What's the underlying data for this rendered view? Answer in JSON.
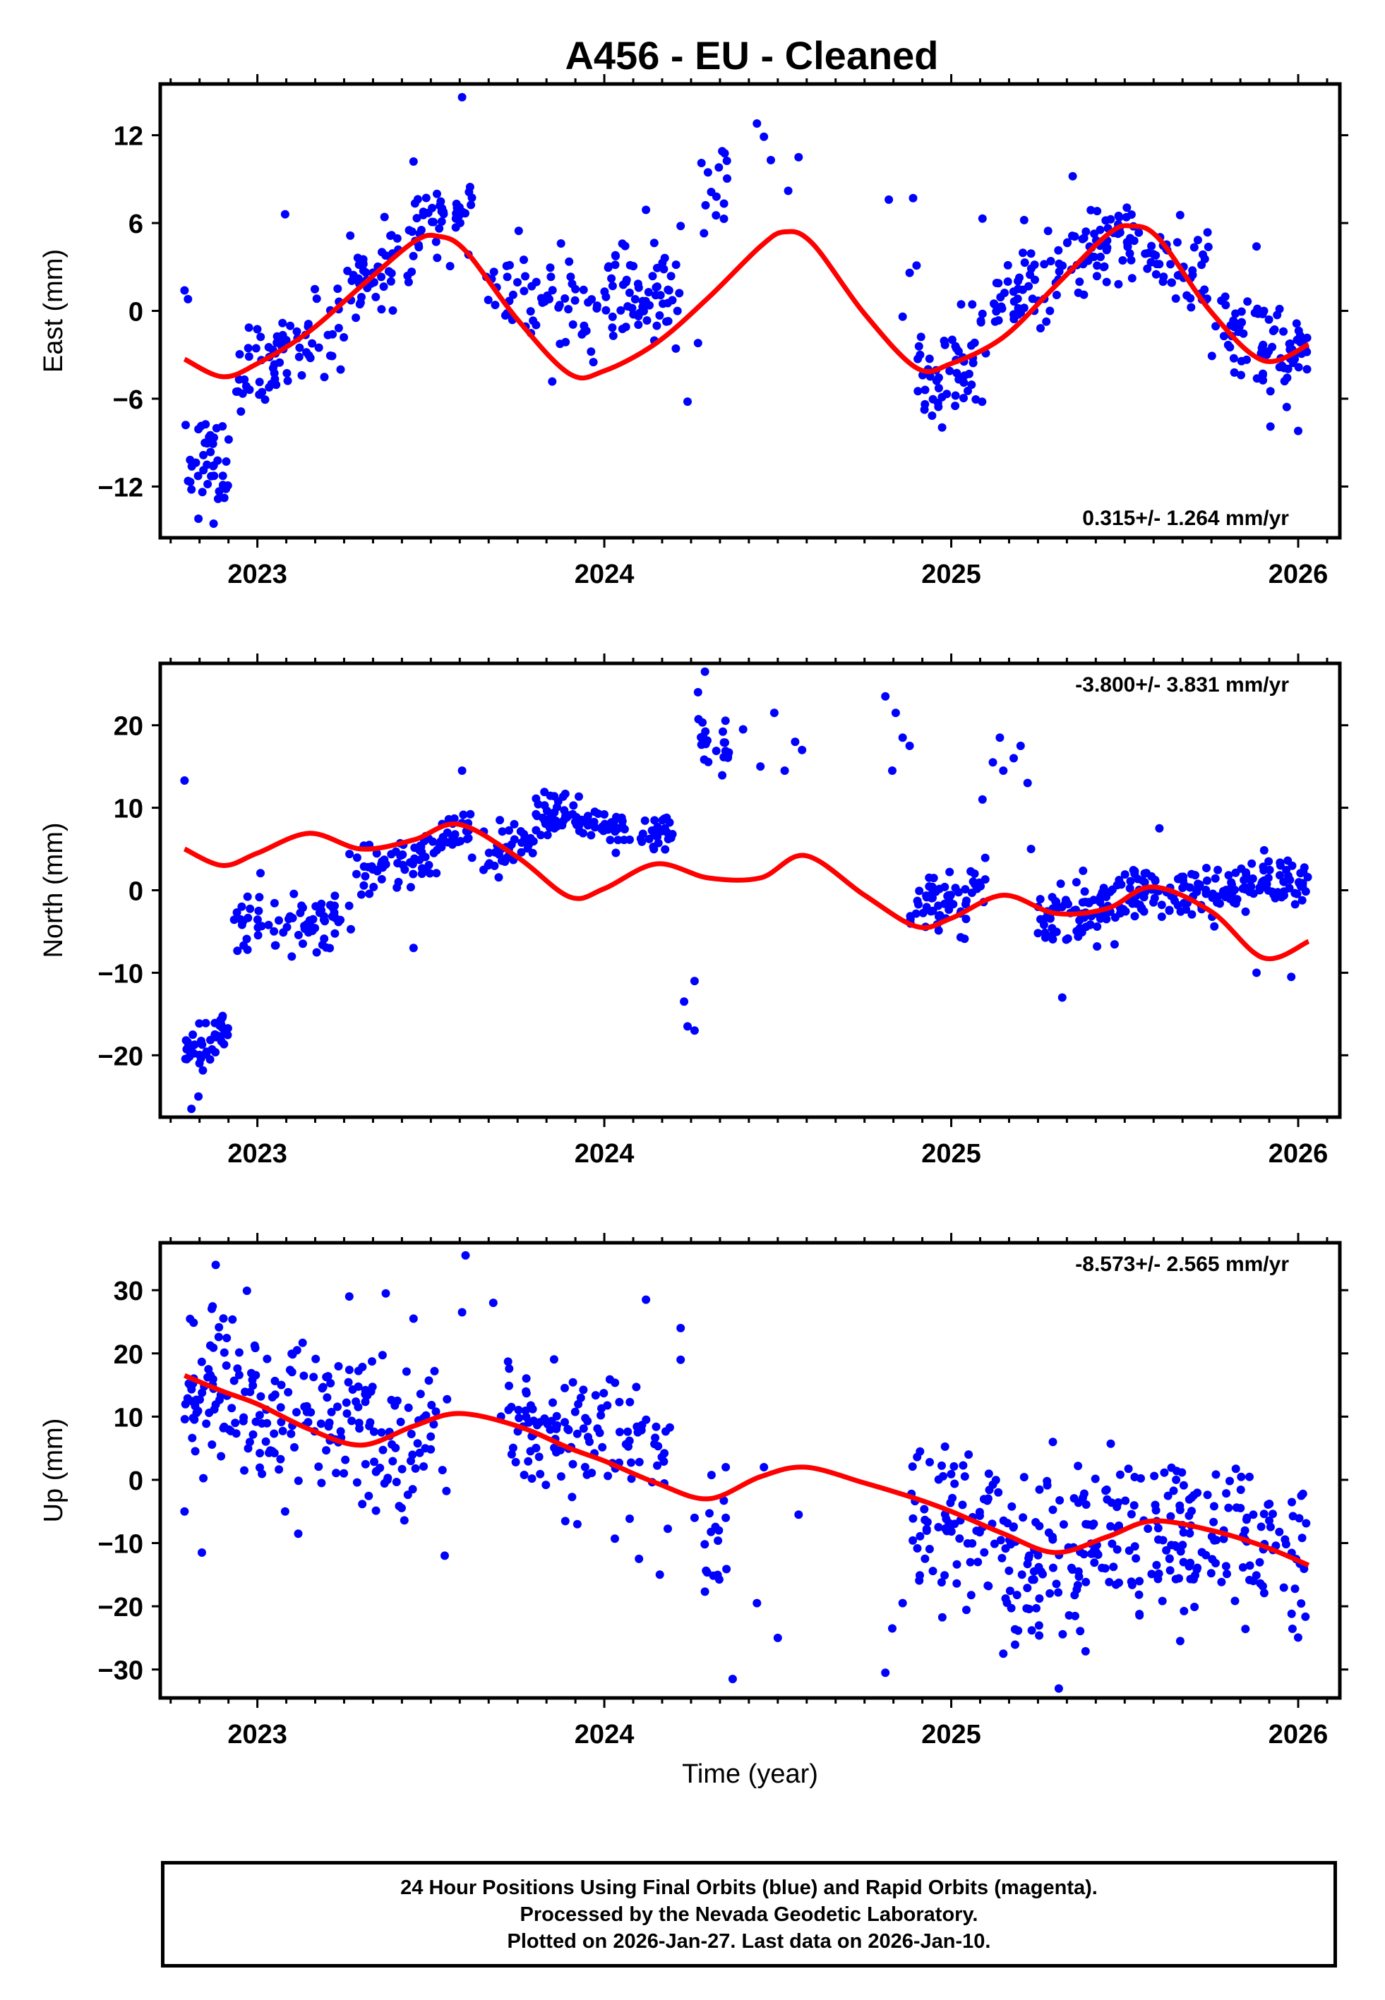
{
  "title": "A456  - EU - Cleaned",
  "footer": {
    "line1": "24 Hour Positions Using Final Orbits (blue) and Rapid Orbits (magenta).",
    "line2": "Processed by the Nevada Geodetic Laboratory.",
    "line3": "Plotted on 2026-Jan-27. Last data on 2026-Jan-10."
  },
  "colors": {
    "points": "#0000ff",
    "fit": "#ff0000",
    "frame": "#000000"
  },
  "chart_data": [
    {
      "type": "scatter",
      "name": "east",
      "ylabel": "East (mm)",
      "xlabel": "",
      "xlim": [
        2022.72,
        2026.12
      ],
      "ylim": [
        -15.5,
        15.5
      ],
      "xticks": [
        2023,
        2024,
        2025,
        2026
      ],
      "xtick_labels": [
        "2023",
        "2024",
        "2025",
        "2026"
      ],
      "yticks": [
        12,
        6,
        0,
        -6,
        -12
      ],
      "ytick_labels": [
        "12",
        "6",
        "0",
        "−6",
        "−12"
      ],
      "rate_label": "0.315+/- 1.264 mm/yr",
      "rate_position": "bottom-right",
      "fit_curve": {
        "x": [
          2022.79,
          2022.9,
          2023.0,
          2023.15,
          2023.3,
          2023.45,
          2023.52,
          2023.6,
          2023.75,
          2023.9,
          2024.0,
          2024.15,
          2024.3,
          2024.45,
          2024.52,
          2024.6,
          2024.75,
          2024.9,
          2025.0,
          2025.15,
          2025.3,
          2025.45,
          2025.52,
          2025.6,
          2025.75,
          2025.9,
          2026.03
        ],
        "y": [
          -3.3,
          -4.5,
          -3.6,
          -1.4,
          1.7,
          4.7,
          5.1,
          4.1,
          -0.6,
          -4.3,
          -4.1,
          -2.2,
          0.9,
          4.4,
          5.4,
          4.6,
          -0.2,
          -3.9,
          -3.6,
          -1.8,
          1.7,
          5.2,
          5.8,
          4.9,
          -0.1,
          -3.4,
          -2.3
        ]
      },
      "segments": [
        {
          "t0": 2022.79,
          "t1": 2022.92,
          "n": 40,
          "sd": 1.8,
          "y0": -10.0,
          "y1": -10.5,
          "seed": 11
        },
        {
          "t0": 2022.93,
          "t1": 2023.25,
          "n": 70,
          "sd": 1.4,
          "y0": -4.2,
          "y1": -1.0,
          "seed": 12
        },
        {
          "t0": 2023.25,
          "t1": 2023.62,
          "n": 90,
          "sd": 1.5,
          "y0": 1.0,
          "y1": 7.0,
          "seed": 13
        },
        {
          "t0": 2023.66,
          "t1": 2023.98,
          "n": 60,
          "sd": 1.6,
          "y0": 3.0,
          "y1": -1.2,
          "seed": 14
        },
        {
          "t0": 2024.0,
          "t1": 2024.22,
          "n": 65,
          "sd": 1.8,
          "y0": 0.8,
          "y1": 0.6,
          "seed": 15
        },
        {
          "t0": 2024.26,
          "t1": 2024.36,
          "n": 12,
          "sd": 1.5,
          "y0": 6.5,
          "y1": 8.5,
          "seed": 16
        },
        {
          "t0": 2024.9,
          "t1": 2025.1,
          "n": 55,
          "sd": 1.6,
          "y0": -4.6,
          "y1": -2.4,
          "seed": 17
        },
        {
          "t0": 2025.12,
          "t1": 2025.42,
          "n": 75,
          "sd": 1.6,
          "y0": 0.0,
          "y1": 4.0,
          "seed": 18
        },
        {
          "t0": 2025.42,
          "t1": 2025.75,
          "n": 85,
          "sd": 1.3,
          "y0": 5.0,
          "y1": 2.5,
          "seed": 19
        },
        {
          "t0": 2025.75,
          "t1": 2026.03,
          "n": 80,
          "sd": 1.5,
          "y0": -1.0,
          "y1": -3.8,
          "seed": 20
        }
      ],
      "outliers": [
        [
          2022.79,
          1.4
        ],
        [
          2022.8,
          0.8
        ],
        [
          2022.83,
          -14.2
        ],
        [
          2022.81,
          -12.2
        ],
        [
          2023.08,
          6.6
        ],
        [
          2023.59,
          14.6
        ],
        [
          2023.45,
          10.2
        ],
        [
          2024.12,
          6.9
        ],
        [
          2024.22,
          5.8
        ],
        [
          2024.24,
          -6.2
        ],
        [
          2024.27,
          -2.2
        ],
        [
          2024.28,
          10.1
        ],
        [
          2024.33,
          9.8
        ],
        [
          2024.44,
          12.8
        ],
        [
          2024.46,
          11.9
        ],
        [
          2024.48,
          10.3
        ],
        [
          2024.53,
          8.2
        ],
        [
          2024.56,
          10.5
        ],
        [
          2024.82,
          7.6
        ],
        [
          2024.86,
          -0.4
        ],
        [
          2024.88,
          2.6
        ],
        [
          2024.89,
          7.7
        ],
        [
          2024.9,
          3.1
        ],
        [
          2025.09,
          6.3
        ],
        [
          2025.21,
          6.2
        ],
        [
          2025.35,
          9.2
        ],
        [
          2025.88,
          4.4
        ],
        [
          2025.92,
          -7.9
        ],
        [
          2026.0,
          -8.2
        ]
      ]
    },
    {
      "type": "scatter",
      "name": "north",
      "ylabel": "North (mm)",
      "xlabel": "",
      "xlim": [
        2022.72,
        2026.12
      ],
      "ylim": [
        -27.5,
        27.5
      ],
      "xticks": [
        2023,
        2024,
        2025,
        2026
      ],
      "xtick_labels": [
        "2023",
        "2024",
        "2025",
        "2026"
      ],
      "yticks": [
        20,
        10,
        0,
        -10,
        -20
      ],
      "ytick_labels": [
        "20",
        "10",
        "0",
        "−10",
        "−20"
      ],
      "rate_label": "-3.800+/- 3.831 mm/yr",
      "rate_position": "top-right",
      "fit_curve": {
        "x": [
          2022.79,
          2022.9,
          2023.0,
          2023.15,
          2023.3,
          2023.45,
          2023.58,
          2023.75,
          2023.9,
          2024.0,
          2024.15,
          2024.3,
          2024.45,
          2024.58,
          2024.75,
          2024.9,
          2025.0,
          2025.15,
          2025.3,
          2025.45,
          2025.58,
          2025.75,
          2025.9,
          2026.03
        ],
        "y": [
          5.0,
          3.0,
          4.5,
          6.9,
          5.0,
          6.1,
          8.0,
          4.0,
          -0.8,
          0.2,
          3.2,
          1.5,
          1.5,
          4.2,
          -0.6,
          -4.4,
          -3.4,
          -0.6,
          -2.8,
          -2.2,
          0.4,
          -2.6,
          -8.2,
          -6.2
        ]
      },
      "segments": [
        {
          "t0": 2022.79,
          "t1": 2022.92,
          "n": 45,
          "sd": 1.5,
          "y0": -19.5,
          "y1": -16.5,
          "seed": 31
        },
        {
          "t0": 2022.93,
          "t1": 2023.27,
          "n": 75,
          "sd": 2.0,
          "y0": -4.0,
          "y1": -3.0,
          "seed": 32
        },
        {
          "t0": 2023.28,
          "t1": 2023.62,
          "n": 85,
          "sd": 1.6,
          "y0": 1.0,
          "y1": 7.5,
          "seed": 33
        },
        {
          "t0": 2023.65,
          "t1": 2023.8,
          "n": 35,
          "sd": 1.8,
          "y0": 3.5,
          "y1": 6.5,
          "seed": 34
        },
        {
          "t0": 2023.8,
          "t1": 2024.2,
          "n": 110,
          "sd": 1.3,
          "y0": 9.5,
          "y1": 6.5,
          "seed": 35
        },
        {
          "t0": 2024.27,
          "t1": 2024.36,
          "n": 22,
          "sd": 2.5,
          "y0": 18.0,
          "y1": 16.0,
          "seed": 36
        },
        {
          "t0": 2024.88,
          "t1": 2025.1,
          "n": 60,
          "sd": 2.0,
          "y0": -3.0,
          "y1": 0.5,
          "seed": 37
        },
        {
          "t0": 2025.25,
          "t1": 2025.5,
          "n": 80,
          "sd": 2.0,
          "y0": -4.0,
          "y1": -1.0,
          "seed": 38
        },
        {
          "t0": 2025.5,
          "t1": 2025.8,
          "n": 90,
          "sd": 1.6,
          "y0": -0.5,
          "y1": 0.0,
          "seed": 39
        },
        {
          "t0": 2025.8,
          "t1": 2026.03,
          "n": 75,
          "sd": 1.6,
          "y0": 0.5,
          "y1": 1.0,
          "seed": 40
        }
      ],
      "outliers": [
        [
          2022.79,
          13.3
        ],
        [
          2022.81,
          -26.5
        ],
        [
          2022.83,
          -25.0
        ],
        [
          2023.45,
          -7.0
        ],
        [
          2023.59,
          14.5
        ],
        [
          2024.23,
          -13.5
        ],
        [
          2024.24,
          -16.5
        ],
        [
          2024.26,
          -11.0
        ],
        [
          2024.26,
          -17.0
        ],
        [
          2024.27,
          24.0
        ],
        [
          2024.29,
          26.5
        ],
        [
          2024.4,
          19.5
        ],
        [
          2024.45,
          15.0
        ],
        [
          2024.49,
          21.5
        ],
        [
          2024.52,
          14.5
        ],
        [
          2024.55,
          18.0
        ],
        [
          2024.57,
          17.0
        ],
        [
          2024.81,
          23.5
        ],
        [
          2024.83,
          14.5
        ],
        [
          2024.84,
          21.5
        ],
        [
          2024.86,
          18.5
        ],
        [
          2024.88,
          17.5
        ],
        [
          2025.09,
          11.0
        ],
        [
          2025.12,
          15.5
        ],
        [
          2025.14,
          18.5
        ],
        [
          2025.15,
          14.5
        ],
        [
          2025.18,
          16.0
        ],
        [
          2025.2,
          17.5
        ],
        [
          2025.22,
          13.0
        ],
        [
          2025.23,
          5.0
        ],
        [
          2025.32,
          -13.0
        ],
        [
          2025.6,
          7.5
        ],
        [
          2025.88,
          -10.0
        ],
        [
          2025.98,
          -10.5
        ]
      ]
    },
    {
      "type": "scatter",
      "name": "up",
      "ylabel": "Up (mm)",
      "xlabel": "Time (year)",
      "xlim": [
        2022.72,
        2026.12
      ],
      "ylim": [
        -34.5,
        37.5
      ],
      "xticks": [
        2023,
        2024,
        2025,
        2026
      ],
      "xtick_labels": [
        "2023",
        "2024",
        "2025",
        "2026"
      ],
      "yticks": [
        30,
        20,
        10,
        0,
        -10,
        -20,
        -30
      ],
      "ytick_labels": [
        "30",
        "20",
        "10",
        "0",
        "−10",
        "−20",
        "−30"
      ],
      "rate_label": "-8.573+/- 2.565 mm/yr",
      "rate_position": "top-right",
      "fit_curve": {
        "x": [
          2022.79,
          2022.9,
          2023.0,
          2023.15,
          2023.3,
          2023.45,
          2023.58,
          2023.75,
          2023.9,
          2024.0,
          2024.15,
          2024.3,
          2024.45,
          2024.58,
          2024.75,
          2024.9,
          2025.0,
          2025.15,
          2025.3,
          2025.45,
          2025.58,
          2025.75,
          2025.9,
          2026.03
        ],
        "y": [
          16.5,
          14.0,
          12.0,
          8.0,
          5.5,
          8.5,
          10.5,
          8.5,
          5.0,
          3.0,
          -0.5,
          -3.0,
          0.5,
          2.0,
          -0.5,
          -3.0,
          -5.0,
          -8.5,
          -11.5,
          -9.0,
          -6.5,
          -8.0,
          -10.5,
          -13.5
        ]
      },
      "segments": [
        {
          "t0": 2022.79,
          "t1": 2023.0,
          "n": 80,
          "sd": 6.0,
          "y0": 17.0,
          "y1": 12.0,
          "seed": 51
        },
        {
          "t0": 2023.0,
          "t1": 2023.55,
          "n": 150,
          "sd": 6.0,
          "y0": 10.0,
          "y1": 8.0,
          "seed": 52
        },
        {
          "t0": 2023.7,
          "t1": 2024.2,
          "n": 120,
          "sd": 5.0,
          "y0": 9.0,
          "y1": 3.0,
          "seed": 53
        },
        {
          "t0": 2024.27,
          "t1": 2024.36,
          "n": 15,
          "sd": 6.0,
          "y0": -12.0,
          "y1": -12.0,
          "seed": 54
        },
        {
          "t0": 2024.88,
          "t1": 2025.15,
          "n": 75,
          "sd": 6.0,
          "y0": -6.0,
          "y1": -9.0,
          "seed": 55
        },
        {
          "t0": 2025.15,
          "t1": 2025.6,
          "n": 140,
          "sd": 6.0,
          "y0": -13.0,
          "y1": -8.0,
          "seed": 56
        },
        {
          "t0": 2025.6,
          "t1": 2026.03,
          "n": 120,
          "sd": 6.0,
          "y0": -7.0,
          "y1": -12.0,
          "seed": 57
        }
      ],
      "outliers": [
        [
          2022.79,
          -5.0
        ],
        [
          2022.84,
          -11.5
        ],
        [
          2022.88,
          34.0
        ],
        [
          2023.08,
          -5.0
        ],
        [
          2023.37,
          29.5
        ],
        [
          2023.45,
          25.5
        ],
        [
          2023.54,
          -12.0
        ],
        [
          2023.59,
          26.5
        ],
        [
          2023.6,
          35.5
        ],
        [
          2023.68,
          28.0
        ],
        [
          2024.1,
          -12.5
        ],
        [
          2024.12,
          28.5
        ],
        [
          2024.16,
          -15.0
        ],
        [
          2024.22,
          24.0
        ],
        [
          2024.22,
          19.0
        ],
        [
          2024.26,
          -6.0
        ],
        [
          2024.33,
          -8.0
        ],
        [
          2024.35,
          2.0
        ],
        [
          2024.37,
          -31.5
        ],
        [
          2024.44,
          -19.5
        ],
        [
          2024.46,
          2.0
        ],
        [
          2024.5,
          -25.0
        ],
        [
          2024.56,
          -5.5
        ],
        [
          2024.81,
          -30.5
        ],
        [
          2024.83,
          -23.5
        ],
        [
          2024.86,
          -19.5
        ],
        [
          2025.05,
          4.0
        ],
        [
          2025.15,
          -27.5
        ],
        [
          2025.31,
          -33.0
        ],
        [
          2025.66,
          -25.5
        ]
      ]
    }
  ]
}
